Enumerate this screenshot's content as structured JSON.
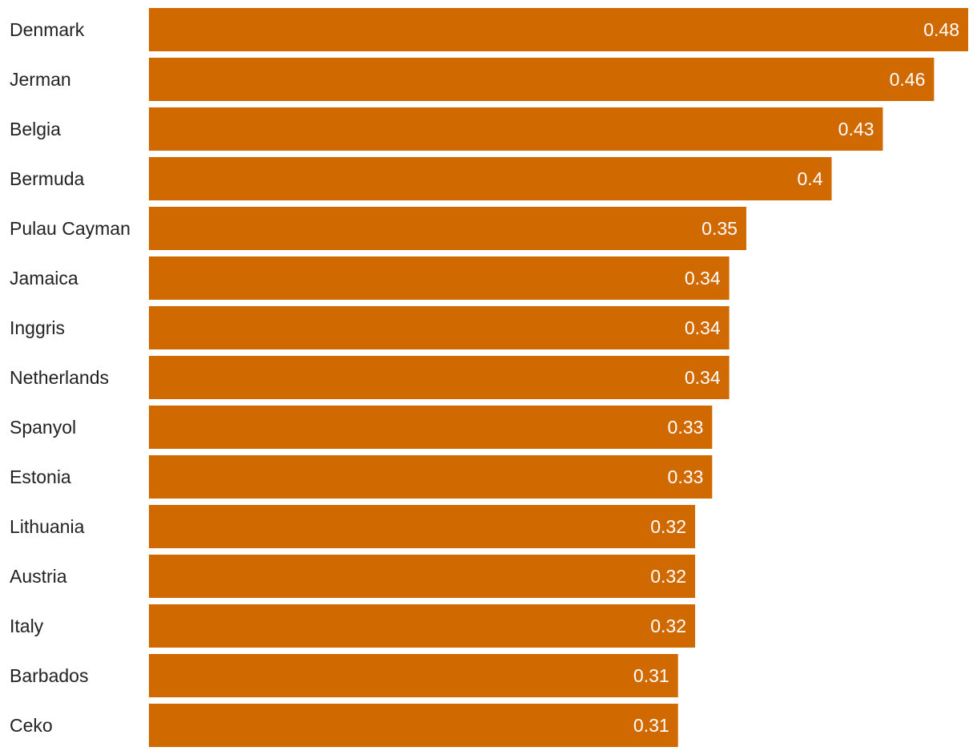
{
  "chart_data": {
    "type": "bar",
    "orientation": "horizontal",
    "title": "",
    "xlabel": "",
    "ylabel": "",
    "categories": [
      "Denmark",
      "Jerman",
      "Belgia",
      "Bermuda",
      "Pulau Cayman",
      "Jamaica",
      "Inggris",
      "Netherlands",
      "Spanyol",
      "Estonia",
      "Lithuania",
      "Austria",
      "Italy",
      "Barbados",
      "Ceko"
    ],
    "values": [
      0.48,
      0.46,
      0.43,
      0.4,
      0.35,
      0.34,
      0.34,
      0.34,
      0.33,
      0.33,
      0.32,
      0.32,
      0.32,
      0.31,
      0.31
    ],
    "value_labels": [
      "0.48",
      "0.46",
      "0.43",
      "0.4",
      "0.35",
      "0.34",
      "0.34",
      "0.34",
      "0.33",
      "0.33",
      "0.32",
      "0.32",
      "0.32",
      "0.31",
      "0.31"
    ],
    "xlim": [
      0,
      0.48
    ],
    "grid": false,
    "bar_color": "#d06a00",
    "value_label_color": "#ffffff",
    "category_label_color": "#222222"
  }
}
